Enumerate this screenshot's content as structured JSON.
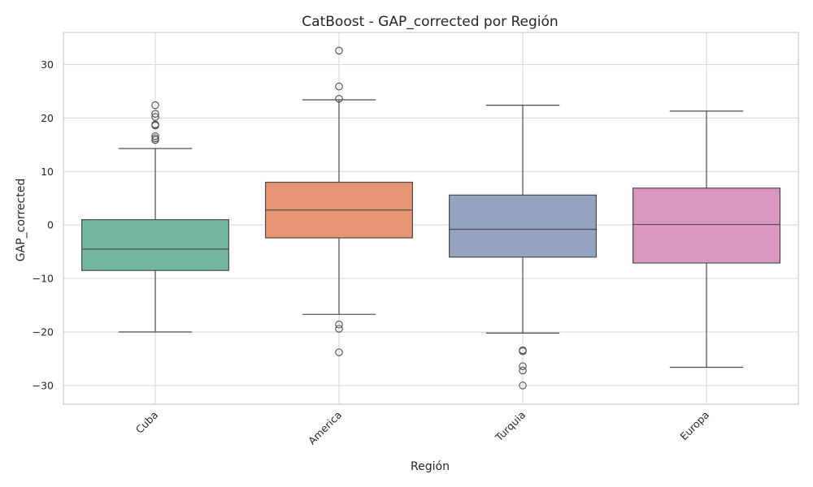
{
  "chart_data": {
    "type": "box",
    "title": "CatBoost - GAP_corrected por Región",
    "xlabel": "Región",
    "ylabel": "GAP_corrected",
    "ylim": [
      -33.5,
      36
    ],
    "yticks": [
      -30,
      -20,
      -10,
      0,
      10,
      20,
      30
    ],
    "ytick_labels": [
      "−30",
      "−20",
      "−10",
      "0",
      "10",
      "20",
      "30"
    ],
    "grid": true,
    "categories": [
      "Cuba",
      "America",
      "Turquia",
      "Europa"
    ],
    "colors": [
      "#72b6a1",
      "#e99675",
      "#95a3c3",
      "#db96c0"
    ],
    "boxes": [
      {
        "category": "Cuba",
        "whisker_low": -20,
        "q1": -8.5,
        "median": -4.5,
        "q3": 1.0,
        "whisker_high": 14.3,
        "outliers": [
          22.4,
          20.8,
          20.2,
          18.8,
          18.6,
          16.6,
          16.2,
          15.9
        ]
      },
      {
        "category": "America",
        "whisker_low": -16.7,
        "q1": -2.4,
        "median": 2.8,
        "q3": 8.0,
        "whisker_high": 23.4,
        "outliers": [
          32.6,
          25.9,
          23.6,
          -18.6,
          -19.4,
          -23.8
        ]
      },
      {
        "category": "Turquia",
        "whisker_low": -20.2,
        "q1": -6.0,
        "median": -0.8,
        "q3": 5.6,
        "whisker_high": 22.4,
        "outliers": [
          -23.4,
          -23.6,
          -26.4,
          -27.2,
          -30.0
        ]
      },
      {
        "category": "Europa",
        "whisker_low": -26.6,
        "q1": -7.1,
        "median": 0.1,
        "q3": 6.9,
        "whisker_high": 21.3,
        "outliers": []
      }
    ]
  }
}
